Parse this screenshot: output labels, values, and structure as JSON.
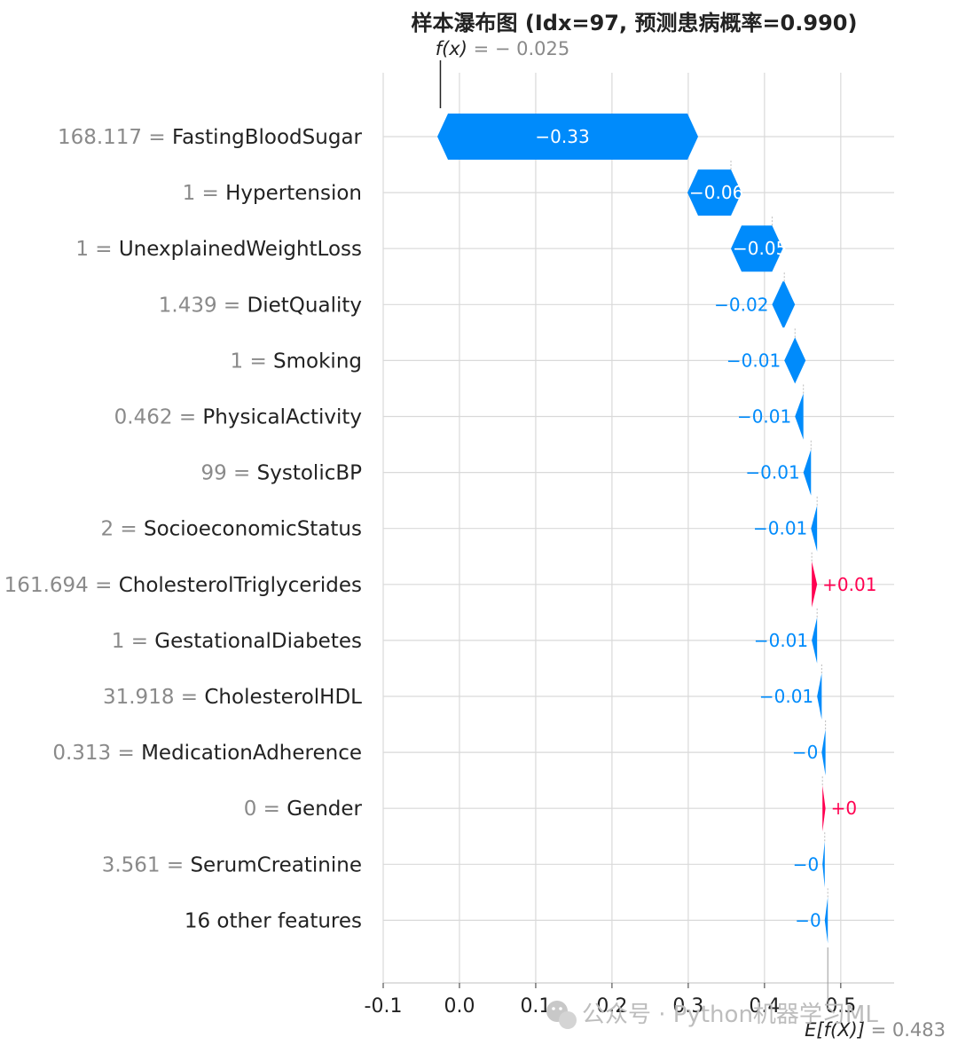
{
  "chart_data": {
    "type": "bar",
    "subtype": "waterfall",
    "title": "样本瀑布图 (Idx=97, 预测患病概率=0.990)",
    "fx_label": "f(x)",
    "fx_value_text": "= − 0.025",
    "fx_value": -0.025,
    "base_label": "E[f(X)]",
    "base_value_text": "= 0.483",
    "base_value": 0.483,
    "xlim": [
      -0.1,
      0.57
    ],
    "xticks": [
      -0.1,
      0.0,
      0.1,
      0.2,
      0.3,
      0.4,
      0.5
    ],
    "xtick_labels": [
      "-0.1",
      "0.0",
      "0.1",
      "0.2",
      "0.3",
      "0.4",
      "0.5"
    ],
    "grid": true,
    "colors": {
      "negative": "#008bfb",
      "positive": "#ff0051",
      "grid": "#d9d9d9"
    },
    "features": [
      {
        "value": "168.117 =",
        "name": "FastingBloodSugar",
        "contribution": -0.328,
        "label": "−0.33"
      },
      {
        "value": "1 =",
        "name": "Hypertension",
        "contribution": -0.057,
        "label": "−0.06"
      },
      {
        "value": "1 =",
        "name": "UnexplainedWeightLoss",
        "contribution": -0.054,
        "label": "−0.05"
      },
      {
        "value": "1.439 =",
        "name": "DietQuality",
        "contribution": -0.016,
        "label": "−0.02"
      },
      {
        "value": "1 =",
        "name": "Smoking",
        "contribution": -0.014,
        "label": "−0.01"
      },
      {
        "value": "0.462 =",
        "name": "PhysicalActivity",
        "contribution": -0.011,
        "label": "−0.01"
      },
      {
        "value": "99 =",
        "name": "SystolicBP",
        "contribution": -0.01,
        "label": "−0.01"
      },
      {
        "value": "2 =",
        "name": "SocioeconomicStatus",
        "contribution": -0.008,
        "label": "−0.01"
      },
      {
        "value": "161.694 =",
        "name": "CholesterolTriglycerides",
        "contribution": 0.007,
        "label": "+0.01"
      },
      {
        "value": "1 =",
        "name": "GestationalDiabetes",
        "contribution": -0.007,
        "label": "−0.01"
      },
      {
        "value": "31.918 =",
        "name": "CholesterolHDL",
        "contribution": -0.006,
        "label": "−0.01"
      },
      {
        "value": "0.313 =",
        "name": "MedicationAdherence",
        "contribution": -0.005,
        "label": "−0"
      },
      {
        "value": "0 =",
        "name": "Gender",
        "contribution": 0.004,
        "label": "+0"
      },
      {
        "value": "3.561 =",
        "name": "SerumCreatinine",
        "contribution": -0.003,
        "label": "−0"
      },
      {
        "value": "",
        "name": "16 other features",
        "contribution": -0.004,
        "label": "−0"
      }
    ]
  },
  "watermark": {
    "icon": "wechat-icon",
    "text": "公众号 · Python机器学习ML"
  }
}
